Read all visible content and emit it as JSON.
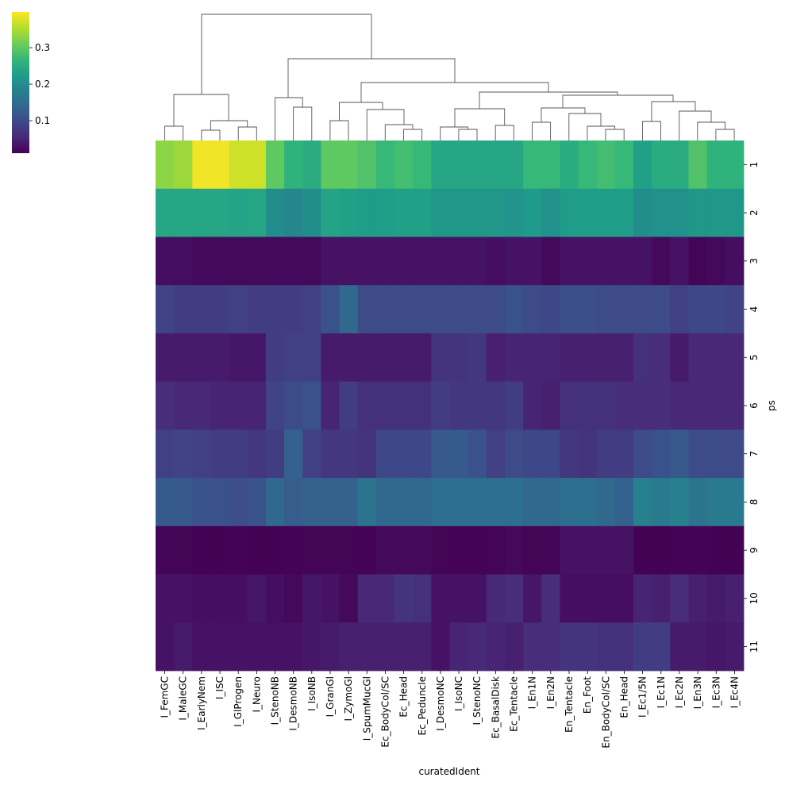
{
  "chart_data": {
    "type": "heatmap",
    "x_label": "curatedIdent",
    "y_label": "ps",
    "x_categories": [
      "I_FemGC",
      "I_MaleGC",
      "I_EarlyNem",
      "I_ISC",
      "I_GlProgen",
      "I_Neuro",
      "I_StenoNB",
      "I_DesmoNB",
      "I_IsoNB",
      "I_GranGl",
      "I_ZymoGl",
      "I_SpumMucGl",
      "Ec_BodyCol/SC",
      "Ec_Head",
      "Ec_Peduncle",
      "I_DesmoNC",
      "I_IsoNC",
      "I_StenoNC",
      "Ec_BasalDisk",
      "Ec_Tentacle",
      "I_En1N",
      "I_En2N",
      "En_Tentacle",
      "En_Foot",
      "En_BodyCol/SC",
      "En_Head",
      "I_Ec1/5N",
      "I_Ec1N",
      "I_Ec2N",
      "I_En3N",
      "I_Ec3N",
      "I_Ec4N"
    ],
    "y_categories": [
      "1",
      "2",
      "3",
      "4",
      "5",
      "6",
      "7",
      "8",
      "9",
      "10",
      "11"
    ],
    "values": [
      [
        0.33,
        0.34,
        0.39,
        0.39,
        0.37,
        0.37,
        0.3,
        0.26,
        0.25,
        0.3,
        0.3,
        0.29,
        0.27,
        0.28,
        0.27,
        0.24,
        0.24,
        0.24,
        0.24,
        0.24,
        0.27,
        0.27,
        0.25,
        0.27,
        0.28,
        0.27,
        0.23,
        0.25,
        0.25,
        0.29,
        0.26,
        0.26
      ],
      [
        0.24,
        0.24,
        0.24,
        0.24,
        0.235,
        0.24,
        0.2,
        0.19,
        0.2,
        0.235,
        0.23,
        0.225,
        0.225,
        0.23,
        0.23,
        0.215,
        0.215,
        0.215,
        0.215,
        0.21,
        0.22,
        0.205,
        0.225,
        0.225,
        0.225,
        0.225,
        0.2,
        0.205,
        0.205,
        0.215,
        0.215,
        0.215
      ],
      [
        0.025,
        0.025,
        0.02,
        0.02,
        0.02,
        0.02,
        0.02,
        0.02,
        0.02,
        0.03,
        0.03,
        0.03,
        0.03,
        0.03,
        0.03,
        0.03,
        0.03,
        0.03,
        0.025,
        0.03,
        0.03,
        0.02,
        0.03,
        0.03,
        0.03,
        0.03,
        0.03,
        0.02,
        0.03,
        0.015,
        0.02,
        0.025
      ],
      [
        0.09,
        0.08,
        0.08,
        0.08,
        0.085,
        0.08,
        0.08,
        0.08,
        0.085,
        0.11,
        0.14,
        0.1,
        0.1,
        0.1,
        0.1,
        0.1,
        0.1,
        0.1,
        0.1,
        0.11,
        0.1,
        0.095,
        0.105,
        0.105,
        0.1,
        0.1,
        0.1,
        0.1,
        0.085,
        0.095,
        0.095,
        0.09
      ],
      [
        0.04,
        0.04,
        0.04,
        0.04,
        0.035,
        0.035,
        0.08,
        0.085,
        0.085,
        0.04,
        0.04,
        0.04,
        0.04,
        0.04,
        0.04,
        0.07,
        0.07,
        0.075,
        0.045,
        0.05,
        0.05,
        0.05,
        0.045,
        0.045,
        0.045,
        0.045,
        0.065,
        0.06,
        0.04,
        0.055,
        0.055,
        0.055
      ],
      [
        0.06,
        0.055,
        0.055,
        0.05,
        0.05,
        0.05,
        0.09,
        0.1,
        0.11,
        0.05,
        0.08,
        0.065,
        0.065,
        0.065,
        0.065,
        0.08,
        0.075,
        0.075,
        0.075,
        0.08,
        0.05,
        0.045,
        0.065,
        0.065,
        0.065,
        0.06,
        0.06,
        0.06,
        0.055,
        0.055,
        0.055,
        0.055
      ],
      [
        0.085,
        0.09,
        0.085,
        0.08,
        0.08,
        0.075,
        0.08,
        0.13,
        0.085,
        0.075,
        0.075,
        0.07,
        0.095,
        0.095,
        0.095,
        0.12,
        0.12,
        0.11,
        0.085,
        0.1,
        0.095,
        0.095,
        0.075,
        0.07,
        0.08,
        0.08,
        0.1,
        0.11,
        0.12,
        0.1,
        0.1,
        0.1
      ],
      [
        0.12,
        0.12,
        0.11,
        0.11,
        0.105,
        0.11,
        0.14,
        0.125,
        0.13,
        0.13,
        0.13,
        0.16,
        0.14,
        0.14,
        0.14,
        0.15,
        0.15,
        0.15,
        0.15,
        0.15,
        0.14,
        0.14,
        0.15,
        0.15,
        0.14,
        0.13,
        0.18,
        0.17,
        0.18,
        0.16,
        0.17,
        0.17
      ],
      [
        0.015,
        0.015,
        0.012,
        0.012,
        0.013,
        0.012,
        0.012,
        0.013,
        0.015,
        0.015,
        0.015,
        0.013,
        0.02,
        0.02,
        0.02,
        0.015,
        0.013,
        0.013,
        0.015,
        0.02,
        0.015,
        0.015,
        0.03,
        0.03,
        0.03,
        0.03,
        0.012,
        0.012,
        0.013,
        0.013,
        0.012,
        0.012
      ],
      [
        0.03,
        0.03,
        0.025,
        0.025,
        0.025,
        0.035,
        0.025,
        0.02,
        0.035,
        0.03,
        0.02,
        0.055,
        0.055,
        0.07,
        0.065,
        0.03,
        0.03,
        0.03,
        0.055,
        0.06,
        0.035,
        0.06,
        0.025,
        0.025,
        0.025,
        0.025,
        0.05,
        0.045,
        0.06,
        0.045,
        0.04,
        0.045
      ],
      [
        0.03,
        0.04,
        0.03,
        0.03,
        0.03,
        0.03,
        0.03,
        0.03,
        0.035,
        0.04,
        0.045,
        0.045,
        0.045,
        0.045,
        0.045,
        0.03,
        0.05,
        0.055,
        0.05,
        0.045,
        0.06,
        0.06,
        0.07,
        0.07,
        0.065,
        0.065,
        0.08,
        0.08,
        0.04,
        0.04,
        0.035,
        0.04
      ]
    ],
    "colormap": "viridis",
    "colorbar_lim": [
      0.011,
      0.398
    ],
    "colorbar_ticks": [
      0.1,
      0.2,
      0.3
    ]
  }
}
